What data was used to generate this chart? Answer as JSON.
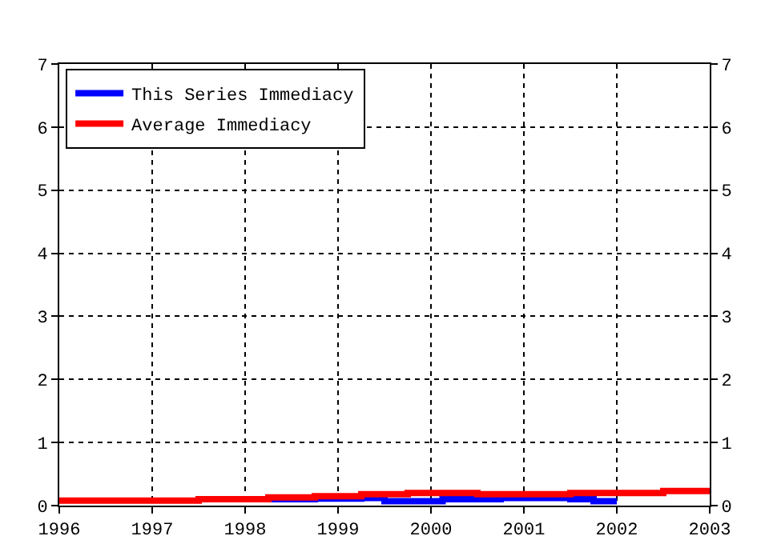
{
  "chart_data": {
    "type": "step",
    "series": [
      {
        "name": "This Series Immediacy",
        "color": "#0000ff",
        "x": [
          1998.25,
          1998.75,
          1999.25,
          1999.5,
          2000.125,
          2000.75,
          2001.25,
          2001.5,
          2001.75,
          2002
        ],
        "values": [
          0.1,
          0.11,
          0.12,
          0.07,
          0.1,
          0.12,
          0.12,
          0.1,
          0.07,
          0.07
        ]
      },
      {
        "name": "Average Immediacy",
        "color": "#ff0000",
        "x": [
          1996,
          1997.5,
          1998.25,
          1998.75,
          1999.25,
          1999.75,
          2000.5,
          2001.5,
          2002.5,
          2003
        ],
        "values": [
          0.08,
          0.1,
          0.13,
          0.15,
          0.18,
          0.2,
          0.18,
          0.2,
          0.23,
          0.23
        ]
      }
    ],
    "xlim": [
      1996,
      2003
    ],
    "xticks": [
      1996,
      1997,
      1998,
      1999,
      2000,
      2001,
      2002,
      2003
    ],
    "ylim": [
      0,
      7
    ],
    "yticks": [
      0,
      1,
      2,
      3,
      4,
      5,
      6,
      7
    ],
    "y2lim": [
      0,
      7
    ],
    "y2ticks": [
      0,
      1,
      2,
      3,
      4,
      5,
      6,
      7
    ],
    "grid": true,
    "legend": "top left",
    "line_style": "solid"
  }
}
